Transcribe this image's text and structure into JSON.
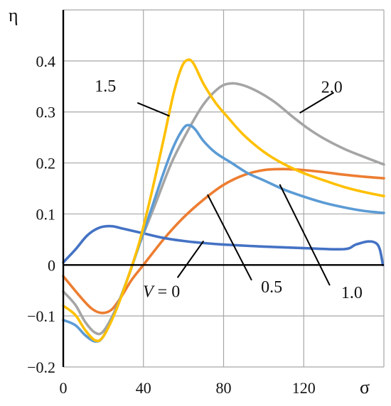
{
  "chart_data": {
    "type": "line",
    "xlabel": "σ",
    "ylabel": "η",
    "xlim": [
      0,
      160
    ],
    "ylim": [
      -0.2,
      0.5
    ],
    "grid": true,
    "legend": "none",
    "x_ticks": [
      0,
      40,
      80,
      120
    ],
    "x_tick_labels": [
      "0",
      "40",
      "80",
      "120"
    ],
    "y_ticks": [
      -0.2,
      -0.1,
      0,
      0.1,
      0.2,
      0.3,
      0.4
    ],
    "y_tick_labels": [
      "−0.2",
      "−0.1",
      "0",
      "0.1",
      "0.2",
      "0.3",
      "0.4"
    ],
    "series": [
      {
        "name": "V = 0",
        "color": "#4472C4",
        "points": [
          [
            0,
            0.005
          ],
          [
            6,
            0.03
          ],
          [
            12,
            0.058
          ],
          [
            18,
            0.073
          ],
          [
            24,
            0.076
          ],
          [
            30,
            0.071
          ],
          [
            40,
            0.062
          ],
          [
            50,
            0.053
          ],
          [
            60,
            0.047
          ],
          [
            70,
            0.043
          ],
          [
            80,
            0.04
          ],
          [
            100,
            0.036
          ],
          [
            120,
            0.033
          ],
          [
            140,
            0.031
          ],
          [
            146,
            0.04
          ],
          [
            152,
            0.046
          ],
          [
            156,
            0.043
          ],
          [
            158,
            0.03
          ],
          [
            159.5,
            0.0
          ]
        ]
      },
      {
        "name": "0.5",
        "color": "#ED7D31",
        "points": [
          [
            0,
            -0.022
          ],
          [
            8,
            -0.06
          ],
          [
            14,
            -0.085
          ],
          [
            19,
            -0.094
          ],
          [
            24,
            -0.088
          ],
          [
            29,
            -0.062
          ],
          [
            34,
            -0.03
          ],
          [
            40,
            0.0
          ],
          [
            50,
            0.05
          ],
          [
            60,
            0.093
          ],
          [
            70,
            0.128
          ],
          [
            80,
            0.157
          ],
          [
            90,
            0.176
          ],
          [
            100,
            0.186
          ],
          [
            110,
            0.188
          ],
          [
            120,
            0.186
          ],
          [
            130,
            0.182
          ],
          [
            140,
            0.177
          ],
          [
            150,
            0.173
          ],
          [
            160,
            0.17
          ]
        ]
      },
      {
        "name": "1.0",
        "color": "#5B9BD5",
        "points": [
          [
            0,
            -0.108
          ],
          [
            6,
            -0.118
          ],
          [
            11,
            -0.138
          ],
          [
            16,
            -0.15
          ],
          [
            20,
            -0.14
          ],
          [
            26,
            -0.09
          ],
          [
            32,
            -0.028
          ],
          [
            38,
            0.04
          ],
          [
            44,
            0.11
          ],
          [
            50,
            0.18
          ],
          [
            55,
            0.232
          ],
          [
            60,
            0.268
          ],
          [
            63,
            0.274
          ],
          [
            66,
            0.265
          ],
          [
            70,
            0.243
          ],
          [
            76,
            0.22
          ],
          [
            84,
            0.2
          ],
          [
            92,
            0.18
          ],
          [
            100,
            0.166
          ],
          [
            110,
            0.148
          ],
          [
            120,
            0.134
          ],
          [
            130,
            0.122
          ],
          [
            140,
            0.113
          ],
          [
            150,
            0.106
          ],
          [
            160,
            0.102
          ]
        ]
      },
      {
        "name": "1.5",
        "color": "#FFC000",
        "points": [
          [
            0,
            -0.08
          ],
          [
            6,
            -0.098
          ],
          [
            11,
            -0.128
          ],
          [
            16,
            -0.148
          ],
          [
            20,
            -0.14
          ],
          [
            26,
            -0.092
          ],
          [
            32,
            -0.028
          ],
          [
            38,
            0.045
          ],
          [
            44,
            0.14
          ],
          [
            50,
            0.245
          ],
          [
            55,
            0.335
          ],
          [
            59,
            0.387
          ],
          [
            62,
            0.402
          ],
          [
            65,
            0.395
          ],
          [
            70,
            0.355
          ],
          [
            76,
            0.318
          ],
          [
            82,
            0.29
          ],
          [
            90,
            0.255
          ],
          [
            100,
            0.222
          ],
          [
            110,
            0.198
          ],
          [
            120,
            0.18
          ],
          [
            130,
            0.166
          ],
          [
            140,
            0.153
          ],
          [
            150,
            0.143
          ],
          [
            160,
            0.135
          ]
        ]
      },
      {
        "name": "2.0",
        "color": "#A5A5A5",
        "points": [
          [
            0,
            -0.052
          ],
          [
            6,
            -0.078
          ],
          [
            11,
            -0.112
          ],
          [
            16,
            -0.133
          ],
          [
            20,
            -0.13
          ],
          [
            26,
            -0.088
          ],
          [
            32,
            -0.028
          ],
          [
            38,
            0.04
          ],
          [
            46,
            0.12
          ],
          [
            54,
            0.2
          ],
          [
            62,
            0.262
          ],
          [
            70,
            0.315
          ],
          [
            78,
            0.348
          ],
          [
            84,
            0.356
          ],
          [
            90,
            0.352
          ],
          [
            98,
            0.338
          ],
          [
            106,
            0.318
          ],
          [
            114,
            0.292
          ],
          [
            122,
            0.268
          ],
          [
            130,
            0.248
          ],
          [
            140,
            0.228
          ],
          [
            150,
            0.212
          ],
          [
            160,
            0.197
          ]
        ]
      }
    ],
    "annotations": [
      {
        "text": "1.5",
        "label_x": 21,
        "label_y": 0.34,
        "line_from": [
          37,
          0.318
        ],
        "line_to": [
          53,
          0.292
        ]
      },
      {
        "text": "2.0",
        "label_x": 134,
        "label_y": 0.338,
        "line_from": [
          135,
          0.338
        ],
        "line_to": [
          118,
          0.298
        ]
      },
      {
        "text": "V = 0",
        "label_x": 49,
        "label_y": -0.063,
        "line_from": [
          57,
          -0.025
        ],
        "line_to": [
          70,
          0.047
        ]
      },
      {
        "text": "0.5",
        "label_x": 104,
        "label_y": -0.054,
        "line_from": [
          94,
          -0.03
        ],
        "line_to": [
          72,
          0.138
        ]
      },
      {
        "text": "1.0",
        "label_x": 144,
        "label_y": -0.065,
        "line_from": [
          133,
          -0.04
        ],
        "line_to": [
          108,
          0.158
        ]
      }
    ]
  }
}
